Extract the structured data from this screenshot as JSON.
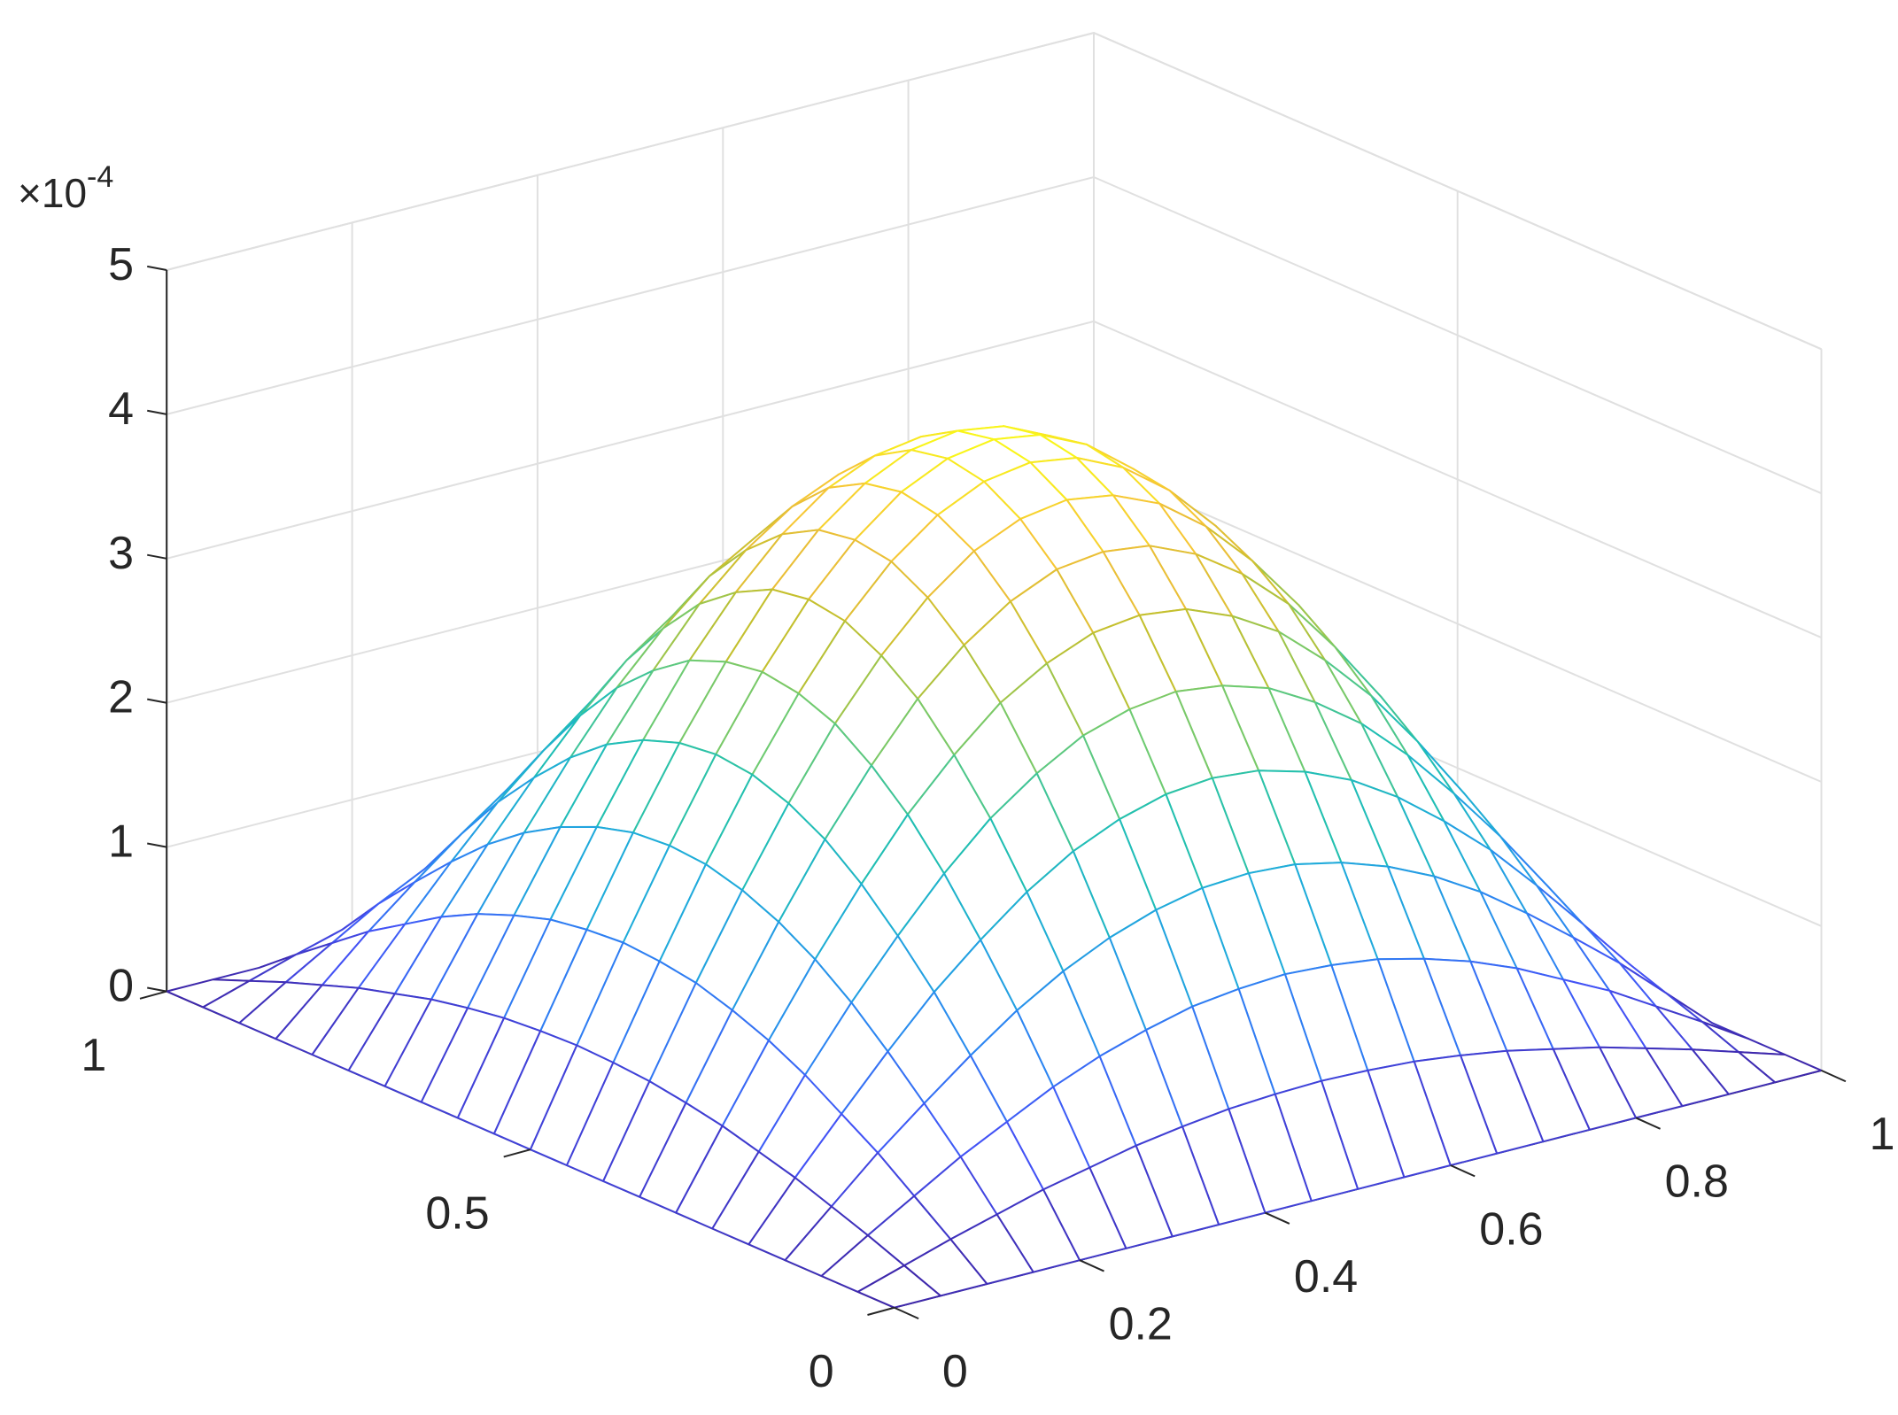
{
  "chart_data": {
    "type": "mesh3d",
    "x": [
      0,
      0.05,
      0.1,
      0.15,
      0.2,
      0.25,
      0.3,
      0.35,
      0.4,
      0.45,
      0.5,
      0.55,
      0.6,
      0.65,
      0.7,
      0.75,
      0.8,
      0.85,
      0.9,
      0.95,
      1
    ],
    "y": [
      0,
      0.05,
      0.1,
      0.15,
      0.2,
      0.25,
      0.3,
      0.35,
      0.4,
      0.45,
      0.5,
      0.55,
      0.6,
      0.65,
      0.7,
      0.75,
      0.8,
      0.85,
      0.9,
      0.95,
      1
    ],
    "z": [
      [
        0,
        0,
        0,
        0,
        0,
        0,
        0,
        0,
        0,
        0,
        0,
        0,
        0,
        0,
        0,
        0,
        0,
        0,
        0,
        0,
        0
      ],
      [
        0,
        0.1,
        0.2,
        0.29,
        0.38,
        0.45,
        0.52,
        0.57,
        0.61,
        0.63,
        0.64,
        0.63,
        0.61,
        0.57,
        0.52,
        0.45,
        0.38,
        0.29,
        0.2,
        0.1,
        0
      ],
      [
        0,
        0.2,
        0.39,
        0.58,
        0.74,
        0.9,
        1.03,
        1.13,
        1.21,
        1.25,
        1.27,
        1.25,
        1.21,
        1.13,
        1.03,
        0.9,
        0.74,
        0.58,
        0.39,
        0.2,
        0
      ],
      [
        0,
        0.29,
        0.58,
        0.84,
        1.09,
        1.32,
        1.51,
        1.66,
        1.77,
        1.84,
        1.86,
        1.84,
        1.77,
        1.66,
        1.51,
        1.32,
        1.09,
        0.84,
        0.58,
        0.29,
        0
      ],
      [
        0,
        0.38,
        0.74,
        1.09,
        1.42,
        1.7,
        1.95,
        2.15,
        2.29,
        2.38,
        2.41,
        2.38,
        2.29,
        2.15,
        1.95,
        1.7,
        1.42,
        1.09,
        0.74,
        0.38,
        0
      ],
      [
        0,
        0.45,
        0.9,
        1.32,
        1.7,
        2.05,
        2.35,
        2.58,
        2.76,
        2.86,
        2.9,
        2.86,
        2.76,
        2.58,
        2.35,
        2.05,
        1.7,
        1.32,
        0.9,
        0.45,
        0
      ],
      [
        0,
        0.52,
        1.03,
        1.51,
        1.95,
        2.35,
        2.68,
        2.96,
        3.15,
        3.28,
        3.32,
        3.28,
        3.15,
        2.96,
        2.68,
        2.35,
        1.95,
        1.51,
        1.03,
        0.52,
        0
      ],
      [
        0,
        0.57,
        1.13,
        1.66,
        2.15,
        2.58,
        2.96,
        3.25,
        3.47,
        3.61,
        3.65,
        3.61,
        3.47,
        3.25,
        2.96,
        2.58,
        2.15,
        1.66,
        1.13,
        0.57,
        0
      ],
      [
        0,
        0.61,
        1.21,
        1.77,
        2.29,
        2.76,
        3.15,
        3.47,
        3.71,
        3.85,
        3.9,
        3.85,
        3.71,
        3.47,
        3.15,
        2.76,
        2.29,
        1.77,
        1.21,
        0.61,
        0
      ],
      [
        0,
        0.63,
        1.25,
        1.84,
        2.38,
        2.86,
        3.28,
        3.61,
        3.85,
        4,
        4.05,
        4,
        3.85,
        3.61,
        3.28,
        2.86,
        2.38,
        1.84,
        1.25,
        0.63,
        0
      ],
      [
        0,
        0.64,
        1.27,
        1.86,
        2.41,
        2.9,
        3.32,
        3.65,
        3.9,
        4.05,
        4.1,
        4.05,
        3.9,
        3.65,
        3.32,
        2.9,
        2.41,
        1.86,
        1.27,
        0.64,
        0
      ],
      [
        0,
        0.63,
        1.25,
        1.84,
        2.38,
        2.86,
        3.28,
        3.61,
        3.85,
        4,
        4.05,
        4,
        3.85,
        3.61,
        3.28,
        2.86,
        2.38,
        1.84,
        1.25,
        0.63,
        0
      ],
      [
        0,
        0.61,
        1.21,
        1.77,
        2.29,
        2.76,
        3.15,
        3.47,
        3.71,
        3.85,
        3.9,
        3.85,
        3.71,
        3.47,
        3.15,
        2.76,
        2.29,
        1.77,
        1.21,
        0.61,
        0
      ],
      [
        0,
        0.57,
        1.13,
        1.66,
        2.15,
        2.58,
        2.96,
        3.25,
        3.47,
        3.61,
        3.65,
        3.61,
        3.47,
        3.25,
        2.96,
        2.58,
        2.15,
        1.66,
        1.13,
        0.57,
        0
      ],
      [
        0,
        0.52,
        1.03,
        1.51,
        1.95,
        2.35,
        2.68,
        2.96,
        3.15,
        3.28,
        3.32,
        3.28,
        3.15,
        2.96,
        2.68,
        2.35,
        1.95,
        1.51,
        1.03,
        0.52,
        0
      ],
      [
        0,
        0.45,
        0.9,
        1.32,
        1.7,
        2.05,
        2.35,
        2.58,
        2.76,
        2.86,
        2.9,
        2.86,
        2.76,
        2.58,
        2.35,
        2.05,
        1.7,
        1.32,
        0.9,
        0.45,
        0
      ],
      [
        0,
        0.38,
        0.74,
        1.09,
        1.42,
        1.7,
        1.95,
        2.15,
        2.29,
        2.38,
        2.41,
        2.38,
        2.29,
        2.15,
        1.95,
        1.7,
        1.42,
        1.09,
        0.74,
        0.38,
        0
      ],
      [
        0,
        0.29,
        0.58,
        0.84,
        1.09,
        1.32,
        1.51,
        1.66,
        1.77,
        1.84,
        1.86,
        1.84,
        1.77,
        1.66,
        1.51,
        1.32,
        1.09,
        0.84,
        0.58,
        0.29,
        0
      ],
      [
        0,
        0.2,
        0.39,
        0.58,
        0.74,
        0.9,
        1.03,
        1.13,
        1.21,
        1.25,
        1.27,
        1.25,
        1.21,
        1.13,
        1.03,
        0.9,
        0.74,
        0.58,
        0.39,
        0.2,
        0
      ],
      [
        0,
        0.1,
        0.2,
        0.29,
        0.38,
        0.45,
        0.52,
        0.57,
        0.61,
        0.63,
        0.64,
        0.63,
        0.61,
        0.57,
        0.52,
        0.45,
        0.38,
        0.29,
        0.2,
        0.1,
        0
      ],
      [
        0,
        0,
        0,
        0,
        0,
        0,
        0,
        0,
        0,
        0,
        0,
        0,
        0,
        0,
        0,
        0,
        0,
        0,
        0,
        0,
        0
      ]
    ],
    "xlim": [
      0,
      1
    ],
    "ylim": [
      0,
      1
    ],
    "zlim": [
      0,
      5
    ],
    "xticks": [
      0,
      0.2,
      0.4,
      0.6,
      0.8,
      1
    ],
    "yticks": [
      0,
      0.5,
      1
    ],
    "zticks": [
      0,
      1,
      2,
      3,
      4,
      5
    ],
    "z_multiplier": {
      "base": "×10",
      "exponent": "-4"
    },
    "grid": true,
    "colormap": [
      "#3e26a8",
      "#4353f7",
      "#2c86f2",
      "#1fabdb",
      "#20c0b1",
      "#6ccb73",
      "#c3c02e",
      "#f6bf3a",
      "#f9fb15"
    ]
  }
}
